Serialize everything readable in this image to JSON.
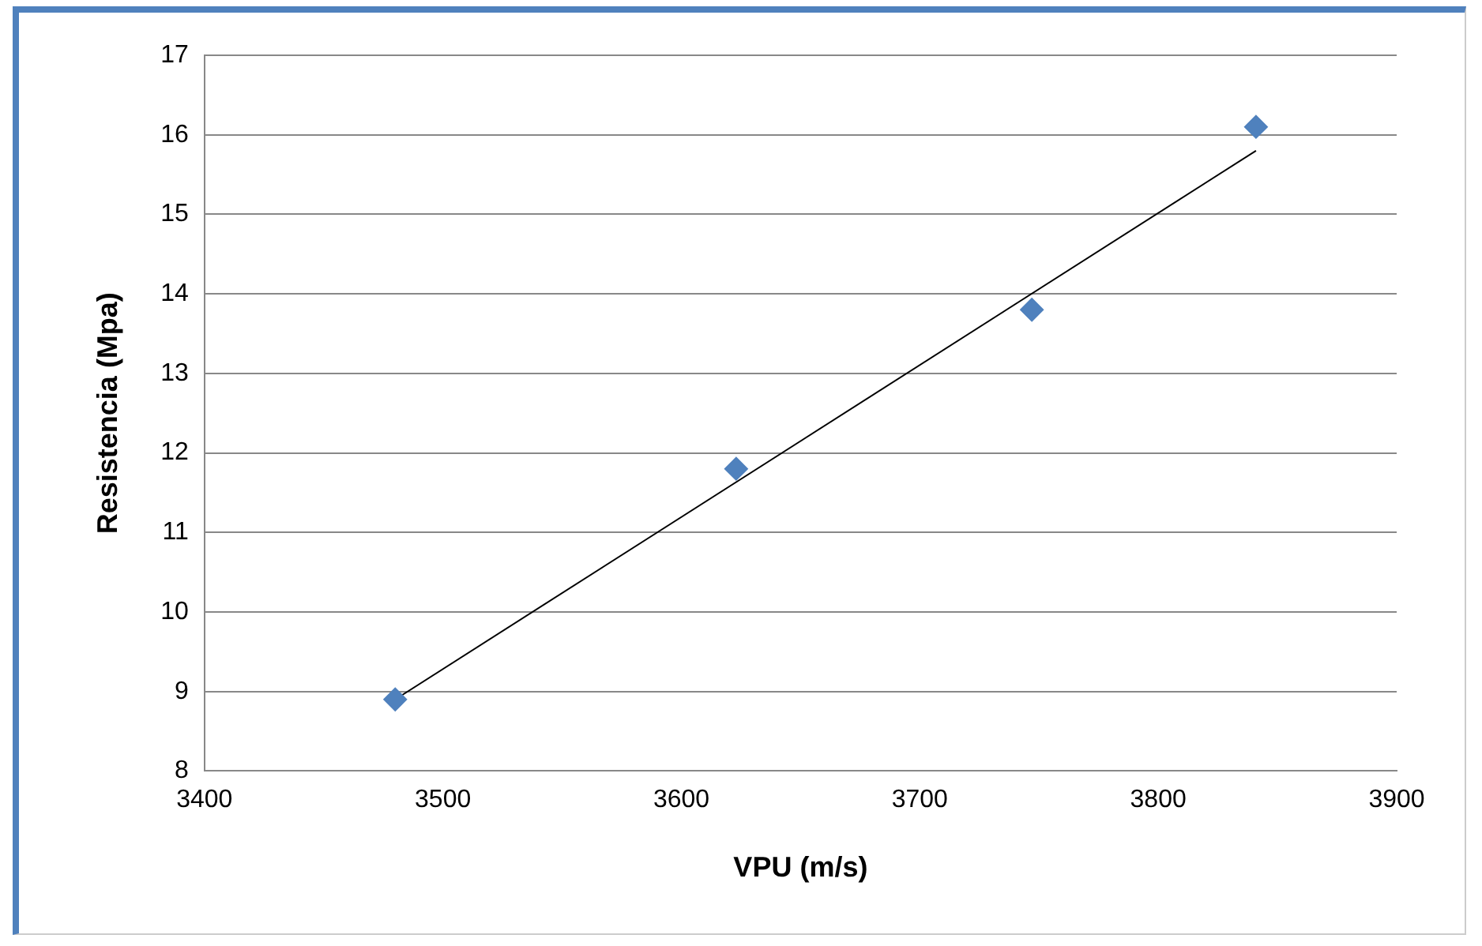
{
  "chart_data": {
    "type": "scatter",
    "xlabel": "VPU (m/s)",
    "ylabel": "Resistencia (Mpa)",
    "xlim": [
      3400,
      3900
    ],
    "xticks": [
      3400,
      3500,
      3600,
      3700,
      3800,
      3900
    ],
    "ylim": [
      8,
      17
    ],
    "yticks": [
      8,
      9,
      10,
      11,
      12,
      13,
      14,
      15,
      16,
      17
    ],
    "grid": "y",
    "legend": false,
    "marker": "diamond",
    "series": [
      {
        "color": "#4f81bd",
        "x": [
          3480,
          3623,
          3747,
          3841
        ],
        "values": [
          8.9,
          11.8,
          13.8,
          16.1
        ]
      },
      {
        "type": "line",
        "color": "#000000",
        "x": [
          3480,
          3841
        ],
        "values": [
          8.9,
          15.8
        ],
        "marker": "none",
        "line_style": "solid"
      }
    ]
  }
}
